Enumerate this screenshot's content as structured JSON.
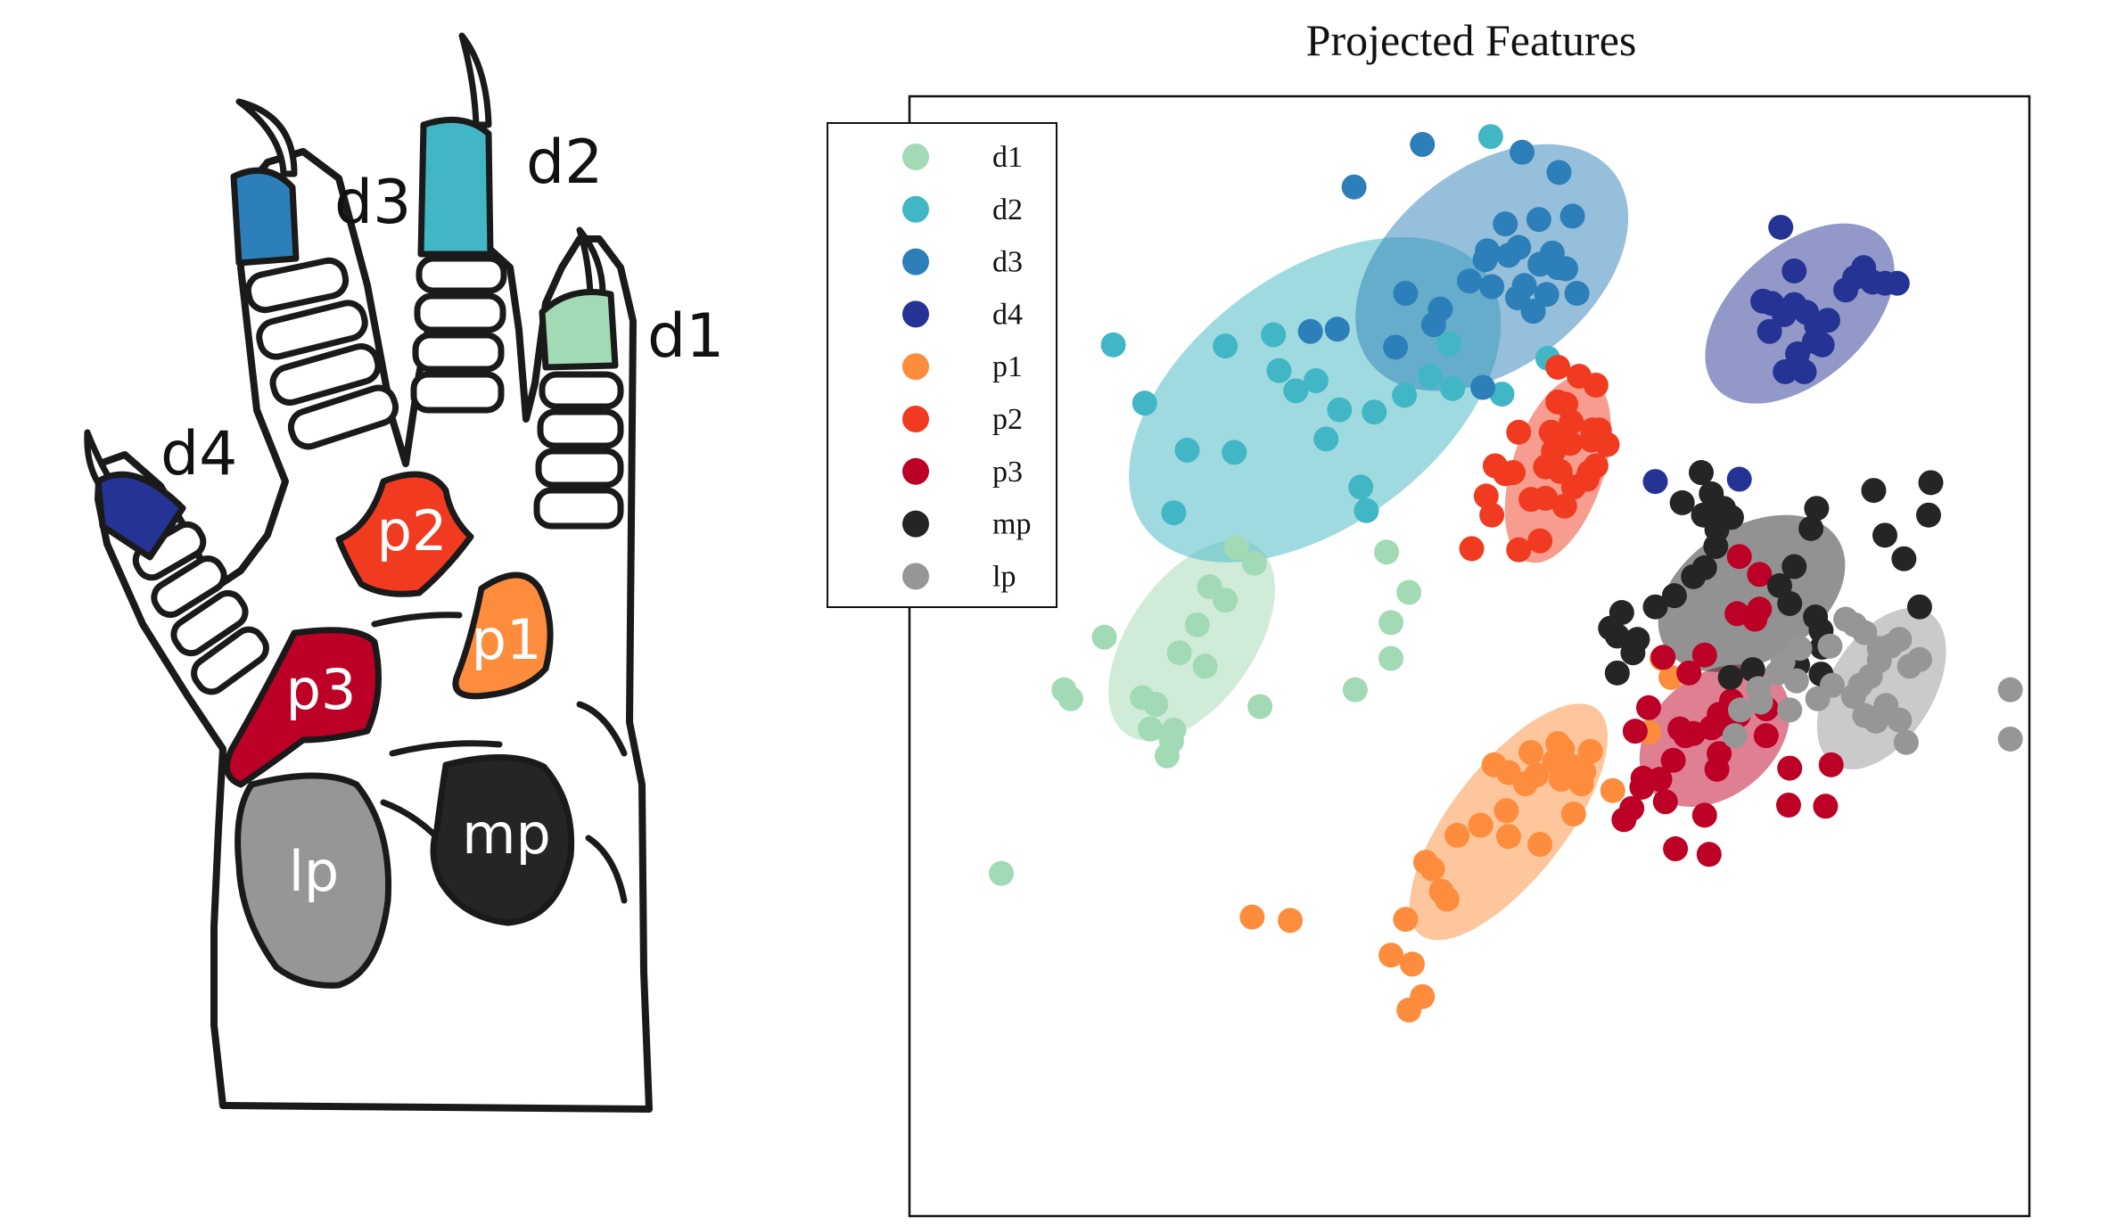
{
  "paw_labels": {
    "digits": [
      "d1",
      "d2",
      "d3",
      "d4"
    ],
    "pads": [
      "p1",
      "p2",
      "p3",
      "mp",
      "lp"
    ]
  },
  "colors": {
    "d1": "#a1dab4",
    "d2": "#41b6c4",
    "d3": "#2c7fb8",
    "d4": "#253494",
    "p1": "#fd8d3c",
    "p2": "#f03b20",
    "p3": "#bd0026",
    "mp": "#252525",
    "lp": "#969696"
  },
  "chart_data": {
    "type": "scatter",
    "title": "Projected Features",
    "xlabel": "",
    "ylabel": "",
    "xlim": [
      0,
      100
    ],
    "ylim": [
      0,
      100
    ],
    "grid": false,
    "axis_ticks": false,
    "legend_position": "top-left",
    "legend": [
      "d1",
      "d2",
      "d3",
      "d4",
      "p1",
      "p2",
      "p3",
      "mp",
      "lp"
    ],
    "series": [
      {
        "name": "d1",
        "points": [
          [
            8.2,
            30.6
          ],
          [
            13.8,
            47.0
          ],
          [
            17.4,
            51.7
          ],
          [
            20.8,
            46.3
          ],
          [
            22.0,
            45.7
          ],
          [
            24.1,
            50.3
          ],
          [
            23.6,
            43.4
          ],
          [
            26.8,
            56.2
          ],
          [
            31.3,
            45.5
          ],
          [
            39.8,
            47.0
          ],
          [
            42.6,
            59.3
          ],
          [
            44.6,
            55.7
          ],
          [
            43.0,
            49.8
          ],
          [
            43.0,
            53.0
          ],
          [
            29.2,
            59.7
          ],
          [
            21.5,
            43.5
          ],
          [
            14.4,
            46.2
          ],
          [
            23.0,
            41.1
          ],
          [
            26.4,
            49.1
          ],
          [
            25.7,
            52.8
          ],
          [
            28.2,
            55.0
          ],
          [
            23.4,
            42.4
          ],
          [
            30.8,
            58.3
          ]
        ],
        "ellipse": {
          "cx": 25.2,
          "cy": 51.4,
          "rx": 10.2,
          "ry": 5.6,
          "angle": -55
        }
      },
      {
        "name": "d2",
        "points": [
          [
            18.2,
            77.8
          ],
          [
            21.0,
            72.6
          ],
          [
            24.8,
            68.4
          ],
          [
            23.6,
            62.8
          ],
          [
            28.2,
            77.7
          ],
          [
            32.5,
            78.7
          ],
          [
            33.0,
            75.5
          ],
          [
            34.5,
            73.7
          ],
          [
            36.3,
            74.6
          ],
          [
            37.2,
            69.4
          ],
          [
            38.4,
            72.0
          ],
          [
            40.3,
            65.1
          ],
          [
            40.8,
            63.0
          ],
          [
            41.5,
            71.8
          ],
          [
            44.2,
            73.3
          ],
          [
            46.5,
            75.0
          ],
          [
            48.2,
            77.9
          ],
          [
            48.5,
            73.9
          ],
          [
            52.9,
            73.4
          ],
          [
            57.0,
            76.6
          ],
          [
            51.9,
            96.4
          ],
          [
            29.0,
            68.2
          ]
        ],
        "ellipse": {
          "cx": 36.2,
          "cy": 72.9,
          "rx": 19.0,
          "ry": 11.2,
          "angle": -37
        }
      },
      {
        "name": "d3",
        "points": [
          [
            39.7,
            91.9
          ],
          [
            45.8,
            95.7
          ],
          [
            54.7,
            95.0
          ],
          [
            44.3,
            82.4
          ],
          [
            46.8,
            79.6
          ],
          [
            38.2,
            79.2
          ],
          [
            50.0,
            83.5
          ],
          [
            51.4,
            85.4
          ],
          [
            52.0,
            83.0
          ],
          [
            53.5,
            85.8
          ],
          [
            54.9,
            83.1
          ],
          [
            56.3,
            85.0
          ],
          [
            56.9,
            82.3
          ],
          [
            57.4,
            86.0
          ],
          [
            58.6,
            84.6
          ],
          [
            59.6,
            82.4
          ],
          [
            57.9,
            84.7
          ],
          [
            54.3,
            82.0
          ],
          [
            56.2,
            89.0
          ],
          [
            51.6,
            86.2
          ],
          [
            53.2,
            88.6
          ],
          [
            54.4,
            86.5
          ],
          [
            47.4,
            81.0
          ],
          [
            43.4,
            77.6
          ],
          [
            35.8,
            79.0
          ],
          [
            51.2,
            74.0
          ],
          [
            55.7,
            80.8
          ],
          [
            58.0,
            93.2
          ],
          [
            59.2,
            89.3
          ]
        ],
        "ellipse": {
          "cx": 52.0,
          "cy": 84.7,
          "rx": 13.8,
          "ry": 8.9,
          "angle": -38
        }
      },
      {
        "name": "d4",
        "points": [
          [
            77.8,
            88.3
          ],
          [
            76.8,
            79.0
          ],
          [
            77.0,
            81.5
          ],
          [
            78.1,
            80.5
          ],
          [
            79.0,
            81.4
          ],
          [
            80.1,
            80.7
          ],
          [
            81.0,
            79.5
          ],
          [
            81.5,
            77.8
          ],
          [
            82.0,
            80.0
          ],
          [
            79.3,
            77.0
          ],
          [
            78.2,
            75.4
          ],
          [
            79.9,
            75.4
          ],
          [
            80.8,
            78.1
          ],
          [
            83.6,
            82.7
          ],
          [
            85.2,
            84.7
          ],
          [
            86.0,
            83.4
          ],
          [
            84.4,
            83.8
          ],
          [
            87.1,
            83.3
          ],
          [
            88.2,
            83.3
          ],
          [
            79.0,
            84.4
          ],
          [
            76.2,
            81.7
          ],
          [
            74.1,
            65.8
          ],
          [
            66.6,
            65.6
          ]
        ],
        "ellipse": {
          "cx": 79.5,
          "cy": 80.6,
          "rx": 10.0,
          "ry": 6.0,
          "angle": -42
        }
      },
      {
        "name": "p1",
        "points": [
          [
            58.3,
            41.7
          ],
          [
            52.2,
            40.3
          ],
          [
            53.5,
            39.6
          ],
          [
            55.5,
            41.4
          ],
          [
            56.0,
            39.4
          ],
          [
            57.6,
            40.6
          ],
          [
            57.9,
            42.2
          ],
          [
            58.2,
            39.0
          ],
          [
            59.4,
            40.1
          ],
          [
            60.2,
            39.7
          ],
          [
            60.0,
            38.6
          ],
          [
            59.3,
            35.9
          ],
          [
            55.0,
            38.6
          ],
          [
            53.3,
            36.2
          ],
          [
            51.0,
            34.9
          ],
          [
            48.9,
            34.0
          ],
          [
            46.7,
            31.0
          ],
          [
            46.1,
            31.6
          ],
          [
            48.0,
            28.3
          ],
          [
            47.5,
            29.0
          ],
          [
            53.5,
            33.9
          ],
          [
            56.3,
            33.2
          ],
          [
            60.8,
            41.5
          ],
          [
            62.8,
            38.0
          ],
          [
            66.0,
            43.2
          ],
          [
            68.0,
            48.1
          ],
          [
            67.2,
            49.8
          ],
          [
            44.3,
            26.5
          ],
          [
            43.0,
            23.3
          ],
          [
            44.9,
            22.5
          ],
          [
            45.8,
            19.6
          ],
          [
            44.6,
            18.4
          ],
          [
            34.0,
            26.4
          ],
          [
            30.6,
            26.7
          ]
        ],
        "ellipse": {
          "cx": 53.5,
          "cy": 35.2,
          "rx": 12.8,
          "ry": 5.1,
          "angle": -52
        }
      },
      {
        "name": "p2",
        "points": [
          [
            57.9,
            75.8
          ],
          [
            59.8,
            75.0
          ],
          [
            61.3,
            74.2
          ],
          [
            57.9,
            72.7
          ],
          [
            59.1,
            70.9
          ],
          [
            61.0,
            70.2
          ],
          [
            61.6,
            70.2
          ],
          [
            60.9,
            69.3
          ],
          [
            59.0,
            69.0
          ],
          [
            57.5,
            68.3
          ],
          [
            56.8,
            66.9
          ],
          [
            58.1,
            66.5
          ],
          [
            60.7,
            66.4
          ],
          [
            62.3,
            68.9
          ],
          [
            61.3,
            67.0
          ],
          [
            60.5,
            65.8
          ],
          [
            59.3,
            65.1
          ],
          [
            58.5,
            63.4
          ],
          [
            54.4,
            70.0
          ],
          [
            53.9,
            66.4
          ],
          [
            53.2,
            66.3
          ],
          [
            52.0,
            62.6
          ],
          [
            51.5,
            64.3
          ],
          [
            52.3,
            67.0
          ],
          [
            55.5,
            64.0
          ],
          [
            56.8,
            64.1
          ],
          [
            56.3,
            60.3
          ],
          [
            54.4,
            59.5
          ],
          [
            50.2,
            59.6
          ],
          [
            57.3,
            70.0
          ],
          [
            58.6,
            72.5
          ]
        ],
        "ellipse": {
          "cx": 57.9,
          "cy": 66.7,
          "rx": 8.7,
          "ry": 4.1,
          "angle": -72
        }
      },
      {
        "name": "p3",
        "points": [
          [
            74.1,
            58.9
          ],
          [
            75.9,
            57.3
          ],
          [
            75.9,
            54.2
          ],
          [
            75.5,
            53.3
          ],
          [
            73.9,
            53.8
          ],
          [
            71.0,
            50.1
          ],
          [
            67.3,
            49.9
          ],
          [
            69.6,
            48.5
          ],
          [
            66.0,
            45.4
          ],
          [
            64.8,
            43.3
          ],
          [
            68.8,
            43.5
          ],
          [
            70.0,
            43.1
          ],
          [
            71.6,
            43.6
          ],
          [
            72.9,
            43.9
          ],
          [
            74.0,
            44.7
          ],
          [
            73.4,
            46.0
          ],
          [
            72.3,
            44.8
          ],
          [
            69.3,
            42.9
          ],
          [
            72.3,
            41.3
          ],
          [
            72.1,
            39.9
          ],
          [
            68.2,
            40.7
          ],
          [
            67.0,
            39.0
          ],
          [
            65.4,
            38.3
          ],
          [
            64.5,
            36.4
          ],
          [
            65.5,
            39.1
          ],
          [
            67.5,
            37.0
          ],
          [
            71.0,
            35.8
          ],
          [
            76.5,
            45.3
          ],
          [
            76.5,
            42.9
          ],
          [
            78.6,
            40.0
          ],
          [
            78.5,
            36.7
          ],
          [
            81.8,
            36.6
          ],
          [
            82.3,
            40.3
          ],
          [
            63.8,
            35.4
          ],
          [
            68.4,
            32.8
          ],
          [
            71.4,
            32.3
          ]
        ],
        "ellipse": {
          "cx": 71.9,
          "cy": 42.9,
          "rx": 7.5,
          "ry": 5.4,
          "angle": -40
        }
      },
      {
        "name": "mp",
        "points": [
          [
            70.7,
            66.4
          ],
          [
            71.6,
            64.5
          ],
          [
            73.4,
            62.4
          ],
          [
            69.0,
            63.7
          ],
          [
            70.9,
            62.6
          ],
          [
            72.7,
            63.2
          ],
          [
            72.1,
            61.3
          ],
          [
            72.0,
            59.8
          ],
          [
            71.0,
            57.9
          ],
          [
            70.0,
            57.1
          ],
          [
            68.3,
            55.4
          ],
          [
            66.6,
            54.4
          ],
          [
            63.6,
            53.9
          ],
          [
            62.6,
            52.5
          ],
          [
            63.2,
            51.8
          ],
          [
            65.0,
            51.5
          ],
          [
            64.6,
            50.3
          ],
          [
            63.2,
            48.5
          ],
          [
            73.3,
            48.1
          ],
          [
            75.3,
            48.8
          ],
          [
            81.4,
            48.4
          ],
          [
            79.3,
            49.2
          ],
          [
            81.5,
            50.8
          ],
          [
            81.4,
            52.3
          ],
          [
            80.9,
            53.5
          ],
          [
            78.6,
            54.7
          ],
          [
            77.7,
            56.3
          ],
          [
            79.0,
            58.0
          ],
          [
            80.5,
            61.4
          ],
          [
            81.0,
            63.2
          ],
          [
            86.1,
            64.8
          ],
          [
            91.2,
            65.5
          ],
          [
            91.0,
            62.6
          ],
          [
            87.1,
            60.8
          ],
          [
            88.8,
            58.7
          ],
          [
            90.2,
            54.4
          ]
        ],
        "ellipse": {
          "cx": 75.2,
          "cy": 55.6,
          "rx": 9.1,
          "ry": 6.0,
          "angle": -32
        }
      },
      {
        "name": "lp",
        "points": [
          [
            89.0,
            42.3
          ],
          [
            88.4,
            44.3
          ],
          [
            87.2,
            45.6
          ],
          [
            86.3,
            44.2
          ],
          [
            85.3,
            44.7
          ],
          [
            84.3,
            46.4
          ],
          [
            84.9,
            47.4
          ],
          [
            85.8,
            48.2
          ],
          [
            86.6,
            49.6
          ],
          [
            87.6,
            50.9
          ],
          [
            88.4,
            51.5
          ],
          [
            89.3,
            49.1
          ],
          [
            90.2,
            49.7
          ],
          [
            86.6,
            50.7
          ],
          [
            85.3,
            52.1
          ],
          [
            84.4,
            52.8
          ],
          [
            83.6,
            53.3
          ],
          [
            82.2,
            50.9
          ],
          [
            79.5,
            50.7
          ],
          [
            78.0,
            49.5
          ],
          [
            77.5,
            48.5
          ],
          [
            75.8,
            47.1
          ],
          [
            76.0,
            45.9
          ],
          [
            78.6,
            45.2
          ],
          [
            81.1,
            46.2
          ],
          [
            82.4,
            47.4
          ],
          [
            79.2,
            47.8
          ],
          [
            74.2,
            45.2
          ],
          [
            73.7,
            42.9
          ],
          [
            98.3,
            42.6
          ],
          [
            98.3,
            47.0
          ]
        ],
        "ellipse": {
          "cx": 86.8,
          "cy": 47.1,
          "rx": 8.0,
          "ry": 4.6,
          "angle": -58
        }
      }
    ]
  }
}
